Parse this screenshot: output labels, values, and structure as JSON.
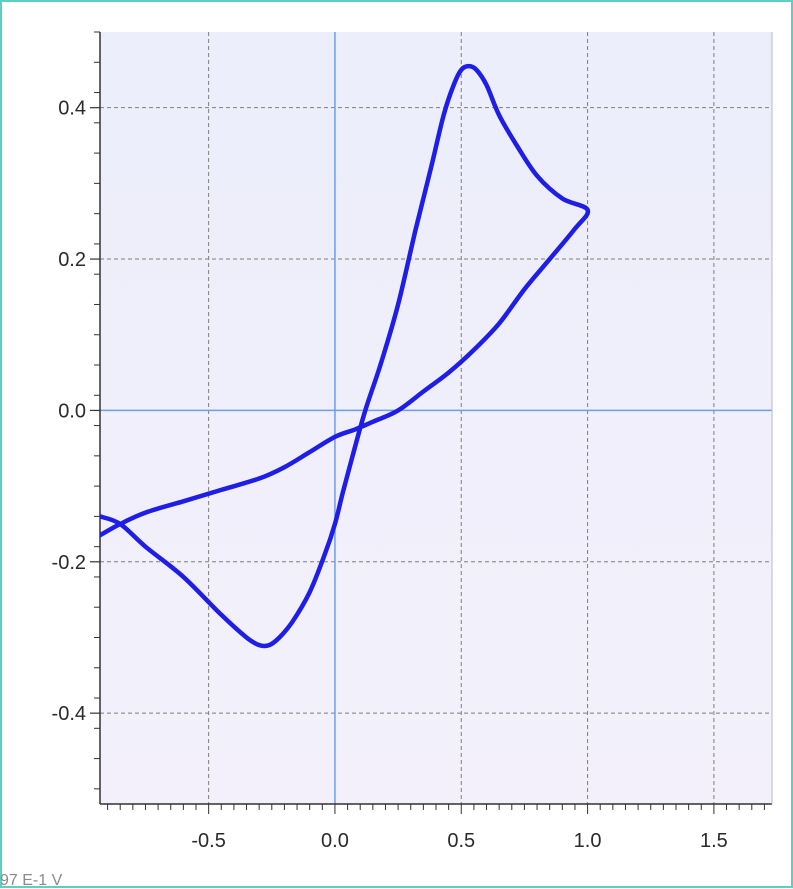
{
  "colors": {
    "frame_border": "#5ecfc3",
    "plot_bg_top": "#eceefb",
    "plot_bg_bottom": "#f3f0fb",
    "grid": "#7d7d7d",
    "zero_axis": "#6d9eea",
    "curve": "#1e1ee6",
    "text": "#2a2a2a"
  },
  "footer_text": "97 E-1 V",
  "chart_data": {
    "type": "line",
    "title": "",
    "xlabel": "",
    "ylabel": "",
    "xlim": [
      -0.93,
      1.73
    ],
    "ylim": [
      -0.52,
      0.5
    ],
    "x_ticks": [
      -0.5,
      0.0,
      0.5,
      1.0,
      1.5
    ],
    "x_tick_labels": [
      "-0.5",
      "0.0",
      "0.5",
      "1.0",
      "1.5"
    ],
    "y_ticks": [
      -0.4,
      -0.2,
      0.0,
      0.2,
      0.4
    ],
    "y_tick_labels": [
      "-0.4",
      "-0.2",
      "0.0",
      "0.2",
      "0.4"
    ],
    "grid": true,
    "grid_style": "dashed",
    "zero_lines": true,
    "series": [
      {
        "x": [
          -0.93,
          -0.85,
          -0.75,
          -0.6,
          -0.45,
          -0.35,
          -0.3,
          -0.26,
          -0.22,
          -0.17,
          -0.1,
          -0.04,
          0.0,
          0.03,
          0.07,
          0.12,
          0.18,
          0.25,
          0.32,
          0.38,
          0.43,
          0.47,
          0.5,
          0.53,
          0.56,
          0.6,
          0.65,
          0.72,
          0.8,
          0.9,
          1.0,
          0.95,
          0.85,
          0.75,
          0.65,
          0.55,
          0.45,
          0.35,
          0.25,
          0.15,
          0.08,
          0.0,
          -0.1,
          -0.2,
          -0.3,
          -0.45,
          -0.6,
          -0.75,
          -0.85,
          -0.93
        ],
        "y": [
          -0.14,
          -0.15,
          -0.18,
          -0.22,
          -0.27,
          -0.3,
          -0.31,
          -0.31,
          -0.3,
          -0.28,
          -0.24,
          -0.19,
          -0.15,
          -0.11,
          -0.06,
          0.0,
          0.06,
          0.14,
          0.24,
          0.32,
          0.39,
          0.43,
          0.45,
          0.455,
          0.45,
          0.43,
          0.39,
          0.35,
          0.31,
          0.28,
          0.265,
          0.24,
          0.2,
          0.16,
          0.115,
          0.08,
          0.05,
          0.025,
          0.0,
          -0.015,
          -0.025,
          -0.035,
          -0.055,
          -0.075,
          -0.09,
          -0.105,
          -0.12,
          -0.135,
          -0.15,
          -0.165
        ]
      }
    ]
  }
}
